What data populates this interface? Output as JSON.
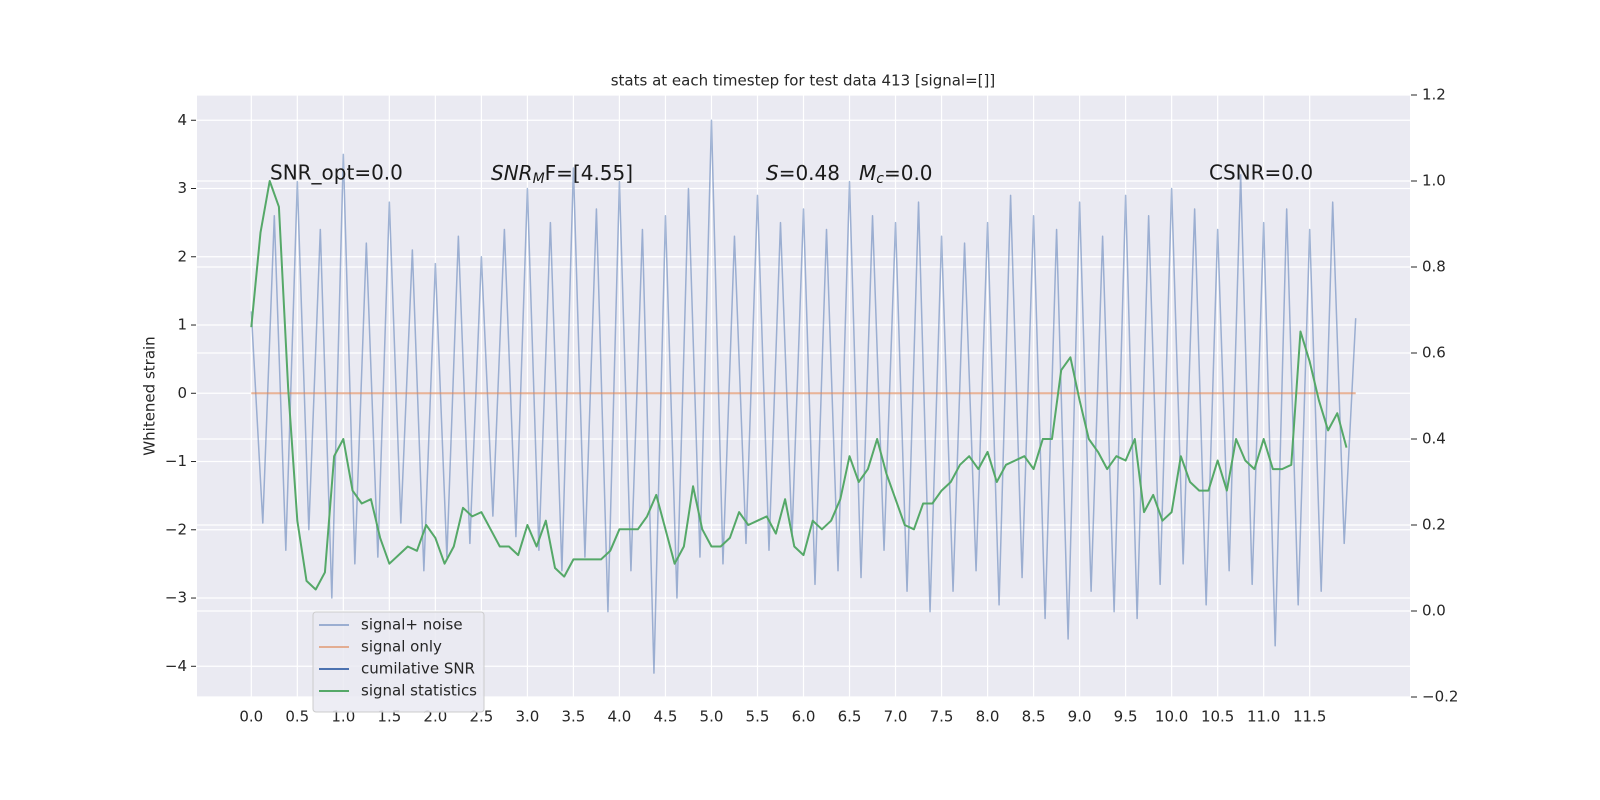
{
  "chart_data": {
    "type": "line",
    "title": "stats at each timestep for test data 413 [signal=[]]",
    "ylabel": "Whitened strain",
    "annotations": {
      "snr_opt": "SNR_opt=0.0",
      "snr_mf": {
        "base": "SNR",
        "sub": "M",
        "rest": "F=[4.55]"
      },
      "s": {
        "base": "S",
        "rest": "=0.48"
      },
      "mc": {
        "base": "M",
        "sub": "c",
        "rest": "=0.0"
      },
      "csnr": "CSNR=0.0"
    },
    "xlim": [
      -0.59,
      12.59
    ],
    "ylim": [
      -4.45,
      4.37
    ],
    "y2lim": [
      -0.2,
      1.2
    ],
    "xticks": [
      {
        "value": 0,
        "label": "0.0"
      },
      0.5,
      {
        "value": 1,
        "label": "1.0"
      },
      1.5,
      {
        "value": 2,
        "label": "2.0"
      },
      2.5,
      {
        "value": 3,
        "label": "3.0"
      },
      3.5,
      {
        "value": 4,
        "label": "4.0"
      },
      4.5,
      {
        "value": 5,
        "label": "5.0"
      },
      5.5,
      {
        "value": 6,
        "label": "6.0"
      },
      6.5,
      {
        "value": 7,
        "label": "7.0"
      },
      7.5,
      {
        "value": 8,
        "label": "8.0"
      },
      8.5,
      {
        "value": 9,
        "label": "9.0"
      },
      9.5,
      {
        "value": 10,
        "label": "10.0"
      },
      10.5,
      {
        "value": 11,
        "label": "11.0"
      },
      11.5
    ],
    "yticks": [
      {
        "value": -4,
        "label": "−4"
      },
      {
        "value": -3,
        "label": "−3"
      },
      {
        "value": -2,
        "label": "−2"
      },
      {
        "value": -1,
        "label": "−1"
      },
      0,
      1,
      2,
      3,
      4
    ],
    "y2ticks": [
      {
        "value": -0.2,
        "label": "−0.2"
      },
      {
        "value": 0,
        "label": "0.0"
      },
      0.2,
      0.4,
      0.6,
      0.8,
      {
        "value": 1,
        "label": "1.0"
      },
      1.2
    ],
    "grid": true,
    "legend": "lower left",
    "series": [
      {
        "name": "signal+ noise",
        "color": "#4c72b0",
        "opacity": 0.5,
        "x": [
          0,
          0.125,
          0.25,
          0.375,
          0.5,
          0.625,
          0.75,
          0.875,
          1,
          1.125,
          1.25,
          1.375,
          1.5,
          1.625,
          1.75,
          1.875,
          2,
          2.125,
          2.25,
          2.375,
          2.5,
          2.625,
          2.75,
          2.875,
          3,
          3.125,
          3.25,
          3.375,
          3.5,
          3.625,
          3.75,
          3.875,
          4,
          4.125,
          4.25,
          4.375,
          4.5,
          4.625,
          4.75,
          4.875,
          5,
          5.125,
          5.25,
          5.375,
          5.5,
          5.625,
          5.75,
          5.875,
          6,
          6.125,
          6.25,
          6.375,
          6.5,
          6.625,
          6.75,
          6.875,
          7,
          7.125,
          7.25,
          7.375,
          7.5,
          7.625,
          7.75,
          7.875,
          8,
          8.125,
          8.25,
          8.375,
          8.5,
          8.625,
          8.75,
          8.875,
          9,
          9.125,
          9.25,
          9.375,
          9.5,
          9.625,
          9.75,
          9.875,
          10,
          10.125,
          10.25,
          10.375,
          10.5,
          10.625,
          10.75,
          10.875,
          11,
          11.125,
          11.25,
          11.375,
          11.5,
          11.625,
          11.75,
          11.875,
          12
        ],
        "values": [
          1.2,
          -1.9,
          2.6,
          -2.3,
          3.1,
          -2.0,
          2.4,
          -3.0,
          3.5,
          -2.5,
          2.2,
          -2.4,
          2.8,
          -1.9,
          2.1,
          -2.6,
          1.9,
          -2.4,
          2.3,
          -2.2,
          2.0,
          -1.8,
          2.4,
          -2.1,
          3.0,
          -2.3,
          2.5,
          -2.6,
          3.3,
          -2.4,
          2.7,
          -3.2,
          3.1,
          -2.6,
          2.4,
          -4.1,
          2.6,
          -3.0,
          3.0,
          -2.4,
          4.0,
          -2.5,
          2.3,
          -2.2,
          2.9,
          -2.3,
          2.5,
          -2.1,
          2.7,
          -2.8,
          2.4,
          -2.6,
          3.1,
          -2.7,
          2.6,
          -2.3,
          2.5,
          -2.9,
          2.8,
          -3.2,
          2.3,
          -2.9,
          2.2,
          -2.6,
          2.5,
          -3.1,
          2.9,
          -2.7,
          2.6,
          -3.3,
          2.4,
          -3.6,
          2.8,
          -2.9,
          2.3,
          -3.2,
          2.9,
          -3.3,
          2.6,
          -2.8,
          3.0,
          -2.5,
          2.7,
          -3.1,
          2.4,
          -2.6,
          3.2,
          -2.8,
          2.5,
          -3.7,
          2.7,
          -3.1,
          2.4,
          -2.9,
          2.8,
          -2.2,
          1.1
        ]
      },
      {
        "name": "signal only",
        "color": "#dd8452",
        "opacity": 0.6,
        "x": [
          0,
          12
        ],
        "values": [
          0,
          0
        ]
      },
      {
        "name": "cumilative SNR",
        "color": "#4c72b0",
        "opacity": 1,
        "x": [],
        "values": []
      },
      {
        "name": "signal statistics",
        "color": "#55a868",
        "opacity": 1,
        "axis": "y2",
        "x": [
          0,
          0.1,
          0.2,
          0.3,
          0.4,
          0.5,
          0.6,
          0.7,
          0.8,
          0.9,
          1,
          1.1,
          1.2,
          1.3,
          1.4,
          1.5,
          1.6,
          1.7,
          1.8,
          1.9,
          2,
          2.1,
          2.2,
          2.3,
          2.4,
          2.5,
          2.6,
          2.7,
          2.8,
          2.9,
          3,
          3.1,
          3.2,
          3.3,
          3.4,
          3.5,
          3.6,
          3.7,
          3.8,
          3.9,
          4,
          4.1,
          4.2,
          4.3,
          4.4,
          4.5,
          4.6,
          4.7,
          4.8,
          4.9,
          5,
          5.1,
          5.2,
          5.3,
          5.4,
          5.5,
          5.6,
          5.7,
          5.8,
          5.9,
          6,
          6.1,
          6.2,
          6.3,
          6.4,
          6.5,
          6.6,
          6.7,
          6.8,
          6.9,
          7,
          7.1,
          7.2,
          7.3,
          7.4,
          7.5,
          7.6,
          7.7,
          7.8,
          7.9,
          8,
          8.1,
          8.2,
          8.3,
          8.4,
          8.5,
          8.6,
          8.7,
          8.8,
          8.9,
          9,
          9.1,
          9.2,
          9.3,
          9.4,
          9.5,
          9.6,
          9.7,
          9.8,
          9.9,
          10,
          10.1,
          10.2,
          10.3,
          10.4,
          10.5,
          10.6,
          10.7,
          10.8,
          10.9,
          11,
          11.1,
          11.2,
          11.3,
          11.4,
          11.5,
          11.6,
          11.7,
          11.8,
          11.9
        ],
        "values": [
          0.66,
          0.88,
          1.0,
          0.94,
          0.52,
          0.21,
          0.07,
          0.05,
          0.09,
          0.36,
          0.4,
          0.28,
          0.25,
          0.26,
          0.17,
          0.11,
          0.13,
          0.15,
          0.14,
          0.2,
          0.17,
          0.11,
          0.15,
          0.24,
          0.22,
          0.23,
          0.19,
          0.15,
          0.15,
          0.13,
          0.2,
          0.15,
          0.21,
          0.1,
          0.08,
          0.12,
          0.12,
          0.12,
          0.12,
          0.14,
          0.19,
          0.19,
          0.19,
          0.22,
          0.27,
          0.19,
          0.11,
          0.15,
          0.29,
          0.19,
          0.15,
          0.15,
          0.17,
          0.23,
          0.2,
          0.21,
          0.22,
          0.18,
          0.26,
          0.15,
          0.13,
          0.21,
          0.19,
          0.21,
          0.26,
          0.36,
          0.3,
          0.33,
          0.4,
          0.32,
          0.26,
          0.2,
          0.19,
          0.25,
          0.25,
          0.28,
          0.3,
          0.34,
          0.36,
          0.33,
          0.37,
          0.3,
          0.34,
          0.35,
          0.36,
          0.33,
          0.4,
          0.4,
          0.56,
          0.59,
          0.49,
          0.4,
          0.37,
          0.33,
          0.36,
          0.35,
          0.4,
          0.23,
          0.27,
          0.21,
          0.23,
          0.36,
          0.3,
          0.28,
          0.28,
          0.35,
          0.28,
          0.4,
          0.35,
          0.33,
          0.4,
          0.33,
          0.33,
          0.34,
          0.65,
          0.58,
          0.49,
          0.42,
          0.46,
          0.38
        ]
      }
    ]
  }
}
